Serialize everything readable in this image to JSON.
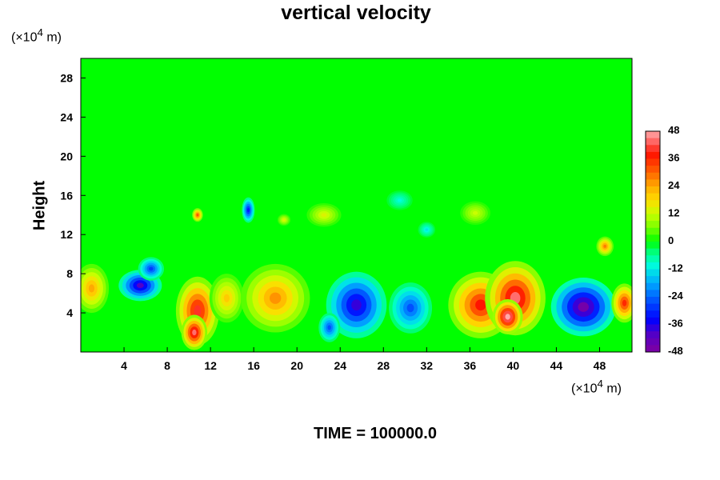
{
  "chart_data": {
    "type": "heatmap",
    "title": "vertical velocity",
    "ylabel": "Height",
    "xlabel": "",
    "x_unit_prefix": "(×10",
    "x_unit_exp": "4",
    "x_unit_suffix": " m)",
    "y_unit_prefix": "(×10",
    "y_unit_exp": "4",
    "y_unit_suffix": " m)",
    "xlim": [
      0,
      51
    ],
    "ylim": [
      0,
      30
    ],
    "x_ticks": [
      4,
      8,
      12,
      16,
      20,
      24,
      28,
      32,
      36,
      40,
      44,
      48
    ],
    "y_ticks": [
      4,
      8,
      12,
      16,
      20,
      24,
      28
    ],
    "colorbar": {
      "range": [
        -48,
        48
      ],
      "ticks": [
        48,
        36,
        24,
        12,
        0,
        -12,
        -24,
        -36,
        -48
      ]
    },
    "background_value": 0,
    "features": [
      {
        "x": 1.0,
        "y": 6.5,
        "rx": 1.6,
        "ry": 2.5,
        "value": 24
      },
      {
        "x": 5.5,
        "y": 6.8,
        "rx": 2.0,
        "ry": 1.6,
        "value": -40
      },
      {
        "x": 6.5,
        "y": 8.5,
        "rx": 1.2,
        "ry": 1.2,
        "value": -28
      },
      {
        "x": 10.8,
        "y": 4.2,
        "rx": 2.0,
        "ry": 3.5,
        "value": 40
      },
      {
        "x": 10.5,
        "y": 2.0,
        "rx": 1.2,
        "ry": 1.8,
        "value": 44
      },
      {
        "x": 13.5,
        "y": 5.5,
        "rx": 1.6,
        "ry": 2.5,
        "value": 20
      },
      {
        "x": 18.0,
        "y": 5.5,
        "rx": 3.2,
        "ry": 3.5,
        "value": 26
      },
      {
        "x": 15.5,
        "y": 14.5,
        "rx": 0.6,
        "ry": 1.3,
        "value": -32
      },
      {
        "x": 10.8,
        "y": 14.0,
        "rx": 0.5,
        "ry": 0.7,
        "value": 32
      },
      {
        "x": 25.5,
        "y": 4.8,
        "rx": 2.8,
        "ry": 3.4,
        "value": -38
      },
      {
        "x": 23.0,
        "y": 2.5,
        "rx": 1.0,
        "ry": 1.5,
        "value": -26
      },
      {
        "x": 30.5,
        "y": 4.5,
        "rx": 2.0,
        "ry": 2.6,
        "value": -26
      },
      {
        "x": 37.0,
        "y": 4.8,
        "rx": 3.0,
        "ry": 3.4,
        "value": 38
      },
      {
        "x": 40.2,
        "y": 5.5,
        "rx": 2.8,
        "ry": 3.8,
        "value": 44
      },
      {
        "x": 39.5,
        "y": 3.6,
        "rx": 1.4,
        "ry": 1.8,
        "value": 50
      },
      {
        "x": 46.5,
        "y": 4.6,
        "rx": 3.0,
        "ry": 3.0,
        "value": -46
      },
      {
        "x": 50.3,
        "y": 5.0,
        "rx": 1.2,
        "ry": 2.0,
        "value": 36
      },
      {
        "x": 48.5,
        "y": 10.8,
        "rx": 0.8,
        "ry": 1.0,
        "value": 28
      },
      {
        "x": 22.5,
        "y": 14.0,
        "rx": 1.6,
        "ry": 1.2,
        "value": 14
      },
      {
        "x": 36.5,
        "y": 14.2,
        "rx": 1.4,
        "ry": 1.2,
        "value": 12
      },
      {
        "x": 18.8,
        "y": 13.5,
        "rx": 0.6,
        "ry": 0.6,
        "value": 14
      },
      {
        "x": 29.5,
        "y": 15.5,
        "rx": 1.2,
        "ry": 1.0,
        "value": -10
      },
      {
        "x": 32.0,
        "y": 12.5,
        "rx": 0.8,
        "ry": 0.8,
        "value": -12
      }
    ]
  },
  "footer": {
    "time_label": "TIME = 100000.0"
  }
}
